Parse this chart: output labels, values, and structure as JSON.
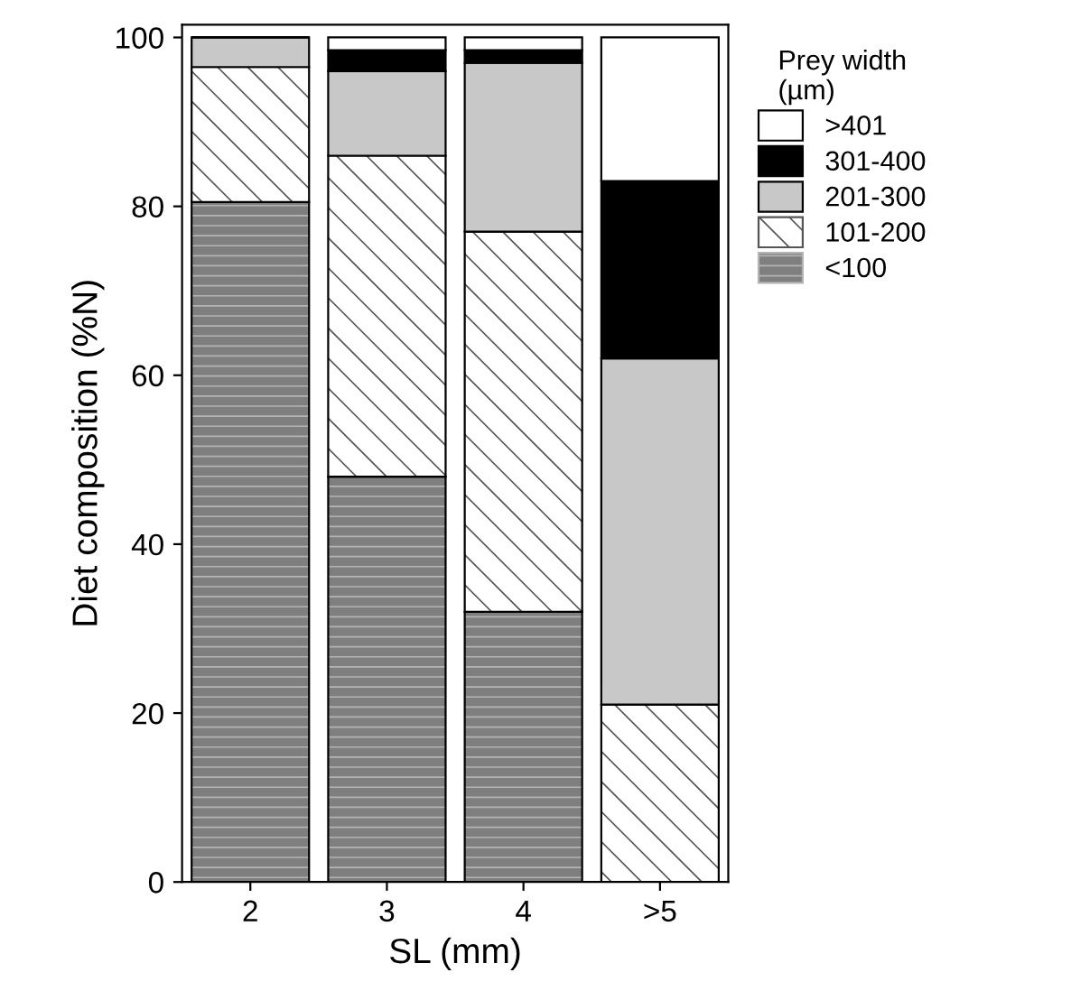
{
  "chart_data": {
    "type": "bar",
    "stacked": true,
    "xlabel": "SL (mm)",
    "ylabel": "Diet composition (%N)",
    "legend_title": "Prey width\n(µm)",
    "legend": "right",
    "categories": [
      "2",
      "3",
      "4",
      ">5"
    ],
    "series": [
      {
        "name": "<100",
        "color": "#7f7f7f",
        "values": [
          80.5,
          48,
          32,
          0
        ]
      },
      {
        "name": "101-200",
        "color": "#ffffff",
        "values": [
          16,
          38,
          45,
          21
        ]
      },
      {
        "name": "201-300",
        "color": "#c8c8c8",
        "values": [
          3.5,
          10,
          20,
          41
        ]
      },
      {
        "name": "301-400",
        "color": "#000000",
        "values": [
          0,
          2.5,
          1.5,
          21
        ]
      },
      {
        "name": ">401",
        "color": "#ffffff",
        "values": [
          0,
          1.5,
          1.5,
          17
        ]
      }
    ],
    "ylim": [
      0,
      101.5
    ],
    "yticks": [
      0,
      20,
      40,
      60,
      80,
      100
    ],
    "grid": false
  }
}
